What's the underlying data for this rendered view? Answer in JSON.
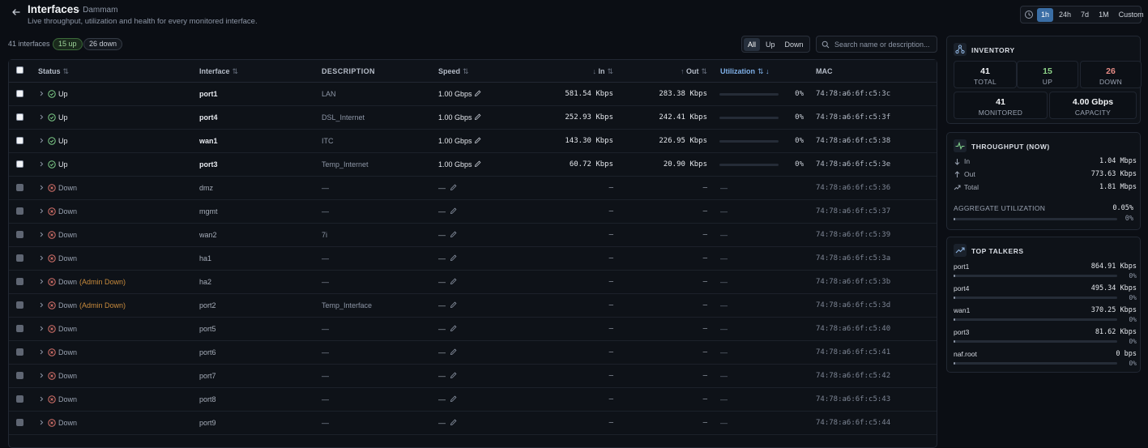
{
  "header": {
    "title": "Interfaces",
    "location": "· Dammam",
    "subtitle": "Live throughput, utilization and health for every monitored interface."
  },
  "time_range": {
    "options": [
      "1h",
      "24h",
      "7d",
      "1M",
      "Custom"
    ],
    "selected": "1h"
  },
  "counts": {
    "total": "41 interfaces",
    "up": "15 up",
    "down": "26 down"
  },
  "filter": {
    "options": [
      "All",
      "Up",
      "Down"
    ],
    "selected": "All"
  },
  "search": {
    "placeholder": "Search name or description..."
  },
  "table": {
    "columns": {
      "status": "Status",
      "interface": "Interface",
      "description": "DESCRIPTION",
      "speed": "Speed",
      "in": "In",
      "out": "Out",
      "utilization": "Utilization",
      "mac": "MAC"
    },
    "rows": [
      {
        "status": "Up",
        "admin": "",
        "name": "port1",
        "description": "LAN",
        "speed": "1.00 Gbps",
        "in": "581.54 Kbps",
        "out": "283.38 Kbps",
        "util": "0%",
        "util_fraction": 0.0,
        "mac": "74:78:a6:6f:c5:3c",
        "up": true
      },
      {
        "status": "Up",
        "admin": "",
        "name": "port4",
        "description": "DSL_Internet",
        "speed": "1.00 Gbps",
        "in": "252.93 Kbps",
        "out": "242.41 Kbps",
        "util": "0%",
        "util_fraction": 0.0,
        "mac": "74:78:a6:6f:c5:3f",
        "up": true
      },
      {
        "status": "Up",
        "admin": "",
        "name": "wan1",
        "description": "ITC",
        "speed": "1.00 Gbps",
        "in": "143.30 Kbps",
        "out": "226.95 Kbps",
        "util": "0%",
        "util_fraction": 0.0,
        "mac": "74:78:a6:6f:c5:38",
        "up": true
      },
      {
        "status": "Up",
        "admin": "",
        "name": "port3",
        "description": "Temp_Internet",
        "speed": "1.00 Gbps",
        "in": "60.72 Kbps",
        "out": "20.90 Kbps",
        "util": "0%",
        "util_fraction": 0.0,
        "mac": "74:78:a6:6f:c5:3e",
        "up": true
      },
      {
        "status": "Down",
        "admin": "",
        "name": "dmz",
        "description": "—",
        "speed": "—",
        "in": "–",
        "out": "–",
        "util": "—",
        "util_fraction": 0.0,
        "mac": "74:78:a6:6f:c5:36",
        "up": false
      },
      {
        "status": "Down",
        "admin": "",
        "name": "mgmt",
        "description": "—",
        "speed": "—",
        "in": "–",
        "out": "–",
        "util": "—",
        "util_fraction": 0.0,
        "mac": "74:78:a6:6f:c5:37",
        "up": false
      },
      {
        "status": "Down",
        "admin": "",
        "name": "wan2",
        "description": "7i",
        "speed": "—",
        "in": "–",
        "out": "–",
        "util": "—",
        "util_fraction": 0.0,
        "mac": "74:78:a6:6f:c5:39",
        "up": false
      },
      {
        "status": "Down",
        "admin": "",
        "name": "ha1",
        "description": "—",
        "speed": "—",
        "in": "–",
        "out": "–",
        "util": "—",
        "util_fraction": 0.0,
        "mac": "74:78:a6:6f:c5:3a",
        "up": false
      },
      {
        "status": "Down",
        "admin": "(Admin Down)",
        "name": "ha2",
        "description": "—",
        "speed": "—",
        "in": "–",
        "out": "–",
        "util": "—",
        "util_fraction": 0.0,
        "mac": "74:78:a6:6f:c5:3b",
        "up": false
      },
      {
        "status": "Down",
        "admin": "(Admin Down)",
        "name": "port2",
        "description": "Temp_Interface",
        "speed": "—",
        "in": "–",
        "out": "–",
        "util": "—",
        "util_fraction": 0.0,
        "mac": "74:78:a6:6f:c5:3d",
        "up": false
      },
      {
        "status": "Down",
        "admin": "",
        "name": "port5",
        "description": "—",
        "speed": "—",
        "in": "–",
        "out": "–",
        "util": "—",
        "util_fraction": 0.0,
        "mac": "74:78:a6:6f:c5:40",
        "up": false
      },
      {
        "status": "Down",
        "admin": "",
        "name": "port6",
        "description": "—",
        "speed": "—",
        "in": "–",
        "out": "–",
        "util": "—",
        "util_fraction": 0.0,
        "mac": "74:78:a6:6f:c5:41",
        "up": false
      },
      {
        "status": "Down",
        "admin": "",
        "name": "port7",
        "description": "—",
        "speed": "—",
        "in": "–",
        "out": "–",
        "util": "—",
        "util_fraction": 0.0,
        "mac": "74:78:a6:6f:c5:42",
        "up": false
      },
      {
        "status": "Down",
        "admin": "",
        "name": "port8",
        "description": "—",
        "speed": "—",
        "in": "–",
        "out": "–",
        "util": "—",
        "util_fraction": 0.0,
        "mac": "74:78:a6:6f:c5:43",
        "up": false
      },
      {
        "status": "Down",
        "admin": "",
        "name": "port9",
        "description": "—",
        "speed": "—",
        "in": "–",
        "out": "–",
        "util": "—",
        "util_fraction": 0.0,
        "mac": "74:78:a6:6f:c5:44",
        "up": false
      }
    ]
  },
  "inventory": {
    "title": "INVENTORY",
    "total": {
      "value": "41",
      "label": "TOTAL"
    },
    "up": {
      "value": "15",
      "label": "UP"
    },
    "down": {
      "value": "26",
      "label": "DOWN"
    },
    "monitored": {
      "value": "41",
      "label": "MONITORED"
    },
    "capacity": {
      "value": "4.00 Gbps",
      "label": "CAPACITY"
    }
  },
  "throughput": {
    "title": "THROUGHPUT (NOW)",
    "in": {
      "label": "In",
      "value": "1.04 Mbps"
    },
    "out": {
      "label": "Out",
      "value": "773.63 Kbps"
    },
    "total": {
      "label": "Total",
      "value": "1.81 Mbps"
    },
    "aggregate_label": "AGGREGATE UTILIZATION",
    "aggregate_value": "0.05%",
    "aggregate_fraction": 0.0005,
    "aggregate_sub": "0%"
  },
  "top_talkers": {
    "title": "TOP TALKERS",
    "items": [
      {
        "name": "port1",
        "value": "864.91 Kbps",
        "pct": "0%",
        "fraction": 0.01
      },
      {
        "name": "port4",
        "value": "495.34 Kbps",
        "pct": "0%",
        "fraction": 0.01
      },
      {
        "name": "wan1",
        "value": "370.25 Kbps",
        "pct": "0%",
        "fraction": 0.01
      },
      {
        "name": "port3",
        "value": "81.62 Kbps",
        "pct": "0%",
        "fraction": 0.01
      },
      {
        "name": "naf.root",
        "value": "0 bps",
        "pct": "0%",
        "fraction": 0.0
      }
    ]
  },
  "colors": {
    "accent": "#3a6ea5",
    "up": "#8ed48a",
    "down": "#e88c86",
    "admin_down": "#c78a3c"
  }
}
